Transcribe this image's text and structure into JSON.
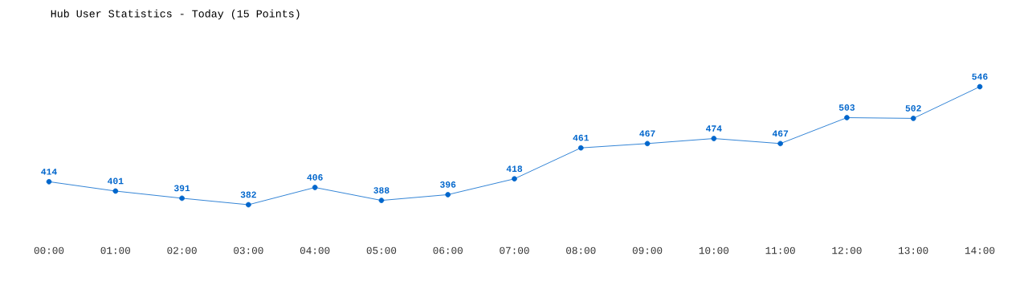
{
  "chart_data": {
    "type": "line",
    "title": "Hub User Statistics - Today (15 Points)",
    "categories": [
      "00:00",
      "01:00",
      "02:00",
      "03:00",
      "04:00",
      "05:00",
      "06:00",
      "07:00",
      "08:00",
      "09:00",
      "10:00",
      "11:00",
      "12:00",
      "13:00",
      "14:00"
    ],
    "values": [
      414,
      401,
      391,
      382,
      406,
      388,
      396,
      418,
      461,
      467,
      474,
      467,
      503,
      502,
      546
    ],
    "color": "#0066cc",
    "marker": "circle",
    "data_labels": true
  }
}
